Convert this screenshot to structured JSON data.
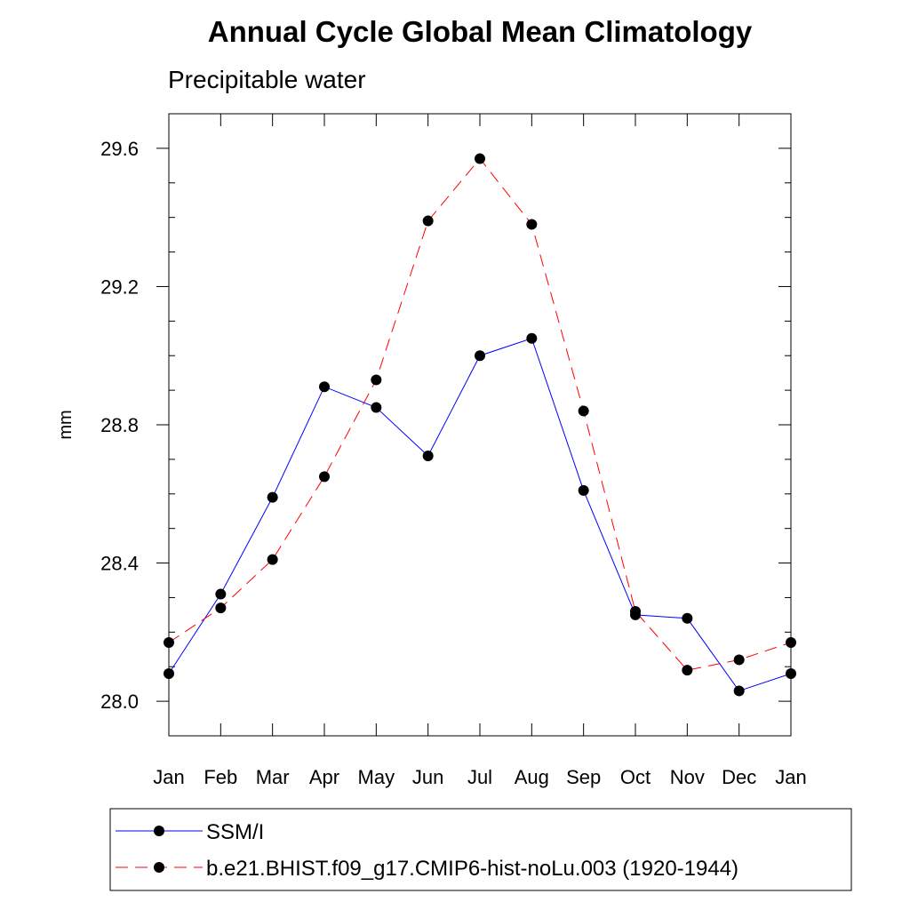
{
  "chart_data": {
    "type": "line",
    "title": "Annual Cycle Global Mean Climatology",
    "subtitle": "Precipitable water",
    "xlabel": "",
    "ylabel": "mm",
    "categories": [
      "Jan",
      "Feb",
      "Mar",
      "Apr",
      "May",
      "Jun",
      "Jul",
      "Aug",
      "Sep",
      "Oct",
      "Nov",
      "Dec",
      "Jan"
    ],
    "ylim": [
      27.9,
      29.7
    ],
    "yticks": [
      "28.0",
      "28.4",
      "28.8",
      "29.2",
      "29.6"
    ],
    "ytick_values": [
      28.0,
      28.4,
      28.8,
      29.2,
      29.6
    ],
    "grid": false,
    "legend_position": "bottom",
    "series": [
      {
        "name": "SSM/I",
        "color": "#0000ff",
        "dash": "solid",
        "marker": "filled-circle",
        "values": [
          28.08,
          28.31,
          28.59,
          28.91,
          28.85,
          28.71,
          29.0,
          29.05,
          28.61,
          28.25,
          28.24,
          28.03,
          28.08
        ]
      },
      {
        "name": "b.e21.BHIST.f09_g17.CMIP6-hist-noLu.003 (1920-1944)",
        "color": "#ff0000",
        "dash": "dashed",
        "marker": "filled-circle",
        "values": [
          28.17,
          28.27,
          28.41,
          28.65,
          28.93,
          29.39,
          29.57,
          29.38,
          28.84,
          28.26,
          28.09,
          28.12,
          28.17
        ]
      }
    ]
  }
}
